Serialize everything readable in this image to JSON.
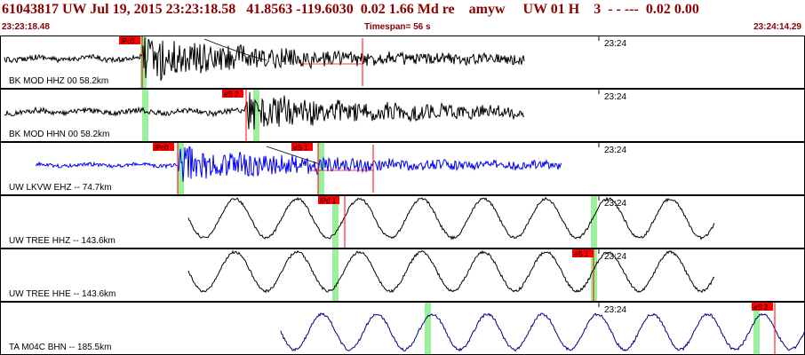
{
  "header": {
    "event_line": "61043817 UW Jul 19, 2015 23:23:18.58   41.8563 -119.6030  0.02 1.66 Md re    amyw     UW 01 H    3  - - ---  0.02 0.00",
    "start_time": "23:23:18.48",
    "timespan": "Timespan=  56 s",
    "end_time": "23:24:14.29"
  },
  "colors": {
    "header_text": "#8b0000",
    "pick_flag": "#ff0000",
    "pick_line": "#ff0000",
    "pick_band": "#90ee90",
    "trace_black": "#000000",
    "trace_blue": "#0000ff",
    "trace_navy": "#000080"
  },
  "panels": [
    {
      "label": "BK MOD HHZ 00 58.2km",
      "time_mark": "23:24",
      "trace_color": "black",
      "picks": [
        {
          "text": "iPc0"
        }
      ],
      "residual_pick": true
    },
    {
      "label": "BK MOD HHN 00 58.2km",
      "time_mark": "23:24",
      "trace_color": "black",
      "picks": [
        {
          "text": "eS 2"
        }
      ],
      "residual_pick": false
    },
    {
      "label": "UW LKVW EHZ -- 74.7km",
      "time_mark": "23:24",
      "trace_color": "blue",
      "picks": [
        {
          "text": "iPc0"
        },
        {
          "text": "eS 1"
        }
      ],
      "residual_pick": true
    },
    {
      "label": "UW TREE HHZ -- 143.6km",
      "time_mark": "23:24",
      "trace_color": "black",
      "picks": [
        {
          "text": "iPd 1"
        }
      ],
      "residual_pick": false
    },
    {
      "label": "UW TREE HHE -- 143.6km",
      "time_mark": "23:24",
      "trace_color": "black",
      "picks": [
        {
          "text": "eS 1"
        }
      ],
      "residual_pick": false
    },
    {
      "label": "TA M04C BHN -- 185.5km",
      "time_mark": "23:24",
      "trace_color": "navy",
      "picks": [
        {
          "text": "eS 2"
        }
      ],
      "residual_pick": false
    }
  ]
}
